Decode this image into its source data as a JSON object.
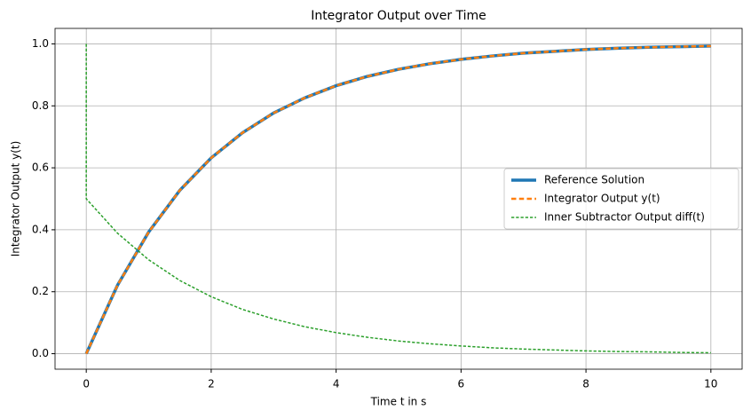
{
  "chart_data": {
    "type": "line",
    "title": "Integrator Output over Time",
    "xlabel": "Time t in s",
    "ylabel": "Integrator Output y(t)",
    "xlim": [
      -0.5,
      10.5
    ],
    "ylim": [
      -0.05,
      1.05
    ],
    "xticks": [
      0,
      2,
      4,
      6,
      8,
      10
    ],
    "yticks": [
      {
        "value": 0,
        "label": "0.0"
      },
      0.2,
      0.4,
      0.6,
      0.8,
      {
        "value": 1,
        "label": "1.0"
      }
    ],
    "grid": true,
    "legend": "center right",
    "series": [
      {
        "name": "Reference Solution",
        "color": "#1f77b4",
        "linestyle": "solid",
        "linewidth": 3.5,
        "x": [
          0,
          0.5,
          1,
          1.5,
          2,
          2.5,
          3,
          3.5,
          4,
          4.5,
          5,
          5.5,
          6,
          6.5,
          7,
          7.5,
          8,
          8.5,
          9,
          9.5,
          10
        ],
        "values": [
          0,
          0.221,
          0.393,
          0.528,
          0.632,
          0.713,
          0.777,
          0.826,
          0.865,
          0.895,
          0.918,
          0.936,
          0.95,
          0.961,
          0.97,
          0.976,
          0.982,
          0.986,
          0.989,
          0.991,
          0.993
        ]
      },
      {
        "name": "Integrator Output y(t)",
        "color": "#ff7f0e",
        "linestyle": "dashed",
        "linewidth": 2.5,
        "x": [
          0,
          0.5,
          1,
          1.5,
          2,
          2.5,
          3,
          3.5,
          4,
          4.5,
          5,
          5.5,
          6,
          6.5,
          7,
          7.5,
          8,
          8.5,
          9,
          9.5,
          10
        ],
        "values": [
          0,
          0.221,
          0.393,
          0.528,
          0.632,
          0.713,
          0.777,
          0.826,
          0.865,
          0.895,
          0.918,
          0.936,
          0.95,
          0.961,
          0.97,
          0.976,
          0.982,
          0.986,
          0.989,
          0.991,
          0.993
        ]
      },
      {
        "name": "Inner Subtractor Output diff(t)",
        "color": "#2ca02c",
        "linestyle": "dashed",
        "linewidth": 1.5,
        "x": [
          0,
          0,
          0.5,
          1,
          1.5,
          2,
          2.5,
          3,
          3.5,
          4,
          4.5,
          5,
          5.5,
          6,
          6.5,
          7,
          7.5,
          8,
          8.5,
          9,
          9.5,
          10
        ],
        "values": [
          1,
          0.5,
          0.389,
          0.303,
          0.236,
          0.184,
          0.143,
          0.112,
          0.087,
          0.068,
          0.053,
          0.041,
          0.032,
          0.025,
          0.019,
          0.015,
          0.012,
          0.009,
          0.007,
          0.006,
          0.004,
          0.003
        ]
      }
    ]
  }
}
